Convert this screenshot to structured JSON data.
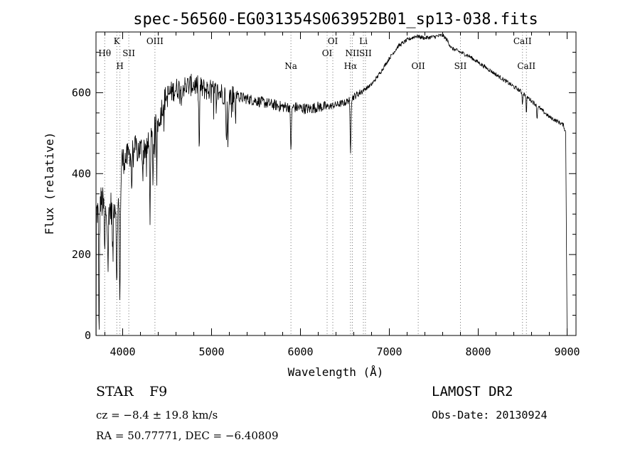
{
  "info": {
    "object_class": "STAR",
    "subclass": "F9",
    "redshift": "cz = −8.4 ± 19.8 km/s",
    "coords": "RA =  50.77771, DEC =  −6.40809",
    "survey": "LAMOST DR2",
    "obs_date": "Obs-Date: 20130924"
  },
  "chart_data": {
    "type": "line",
    "title": "spec-56560-EG031354S063952B01_sp13-038.fits",
    "xlabel": "Wavelength (Å)",
    "ylabel": "Flux (relative)",
    "xlim": [
      3700,
      9100
    ],
    "ylim": [
      0,
      750
    ],
    "xticks": [
      4000,
      5000,
      6000,
      7000,
      8000,
      9000
    ],
    "yticks": [
      0,
      200,
      400,
      600
    ],
    "grid": false,
    "line_color": "#000000",
    "continuum": [
      [
        3700,
        300
      ],
      [
        3760,
        330
      ],
      [
        3830,
        300
      ],
      [
        3900,
        330
      ],
      [
        3950,
        320
      ],
      [
        3990,
        430
      ],
      [
        4050,
        440
      ],
      [
        4120,
        460
      ],
      [
        4200,
        460
      ],
      [
        4300,
        470
      ],
      [
        4400,
        530
      ],
      [
        4480,
        590
      ],
      [
        4600,
        610
      ],
      [
        4700,
        615
      ],
      [
        4800,
        620
      ],
      [
        4900,
        610
      ],
      [
        5000,
        605
      ],
      [
        5100,
        600
      ],
      [
        5200,
        595
      ],
      [
        5300,
        590
      ],
      [
        5400,
        585
      ],
      [
        5500,
        580
      ],
      [
        5600,
        575
      ],
      [
        5700,
        570
      ],
      [
        5800,
        565
      ],
      [
        5900,
        565
      ],
      [
        6000,
        562
      ],
      [
        6100,
        560
      ],
      [
        6200,
        565
      ],
      [
        6300,
        565
      ],
      [
        6400,
        570
      ],
      [
        6500,
        575
      ],
      [
        6600,
        590
      ],
      [
        6700,
        605
      ],
      [
        6800,
        620
      ],
      [
        6900,
        650
      ],
      [
        7000,
        685
      ],
      [
        7100,
        715
      ],
      [
        7200,
        730
      ],
      [
        7300,
        740
      ],
      [
        7400,
        735
      ],
      [
        7500,
        738
      ],
      [
        7600,
        742
      ],
      [
        7650,
        730
      ],
      [
        7700,
        710
      ],
      [
        7800,
        700
      ],
      [
        7900,
        690
      ],
      [
        8000,
        675
      ],
      [
        8100,
        660
      ],
      [
        8200,
        645
      ],
      [
        8300,
        630
      ],
      [
        8400,
        615
      ],
      [
        8500,
        600
      ],
      [
        8600,
        580
      ],
      [
        8700,
        560
      ],
      [
        8800,
        540
      ],
      [
        8900,
        528
      ],
      [
        8960,
        520
      ],
      [
        8985,
        500
      ]
    ],
    "absorption": [
      {
        "wl": 3734,
        "depth": 310,
        "width": 6
      },
      {
        "wl": 3798,
        "depth": 120,
        "width": 6
      },
      {
        "wl": 3836,
        "depth": 120,
        "width": 6
      },
      {
        "wl": 3889,
        "depth": 140,
        "width": 7
      },
      {
        "wl": 3934,
        "depth": 230,
        "width": 6
      },
      {
        "wl": 3969,
        "depth": 260,
        "width": 8
      },
      {
        "wl": 4102,
        "depth": 90,
        "width": 6
      },
      {
        "wl": 4226,
        "depth": 60,
        "width": 5
      },
      {
        "wl": 4308,
        "depth": 170,
        "width": 6
      },
      {
        "wl": 4341,
        "depth": 100,
        "width": 6
      },
      {
        "wl": 4384,
        "depth": 60,
        "width": 5
      },
      {
        "wl": 4861,
        "depth": 160,
        "width": 6
      },
      {
        "wl": 5167,
        "depth": 130,
        "width": 6
      },
      {
        "wl": 5184,
        "depth": 140,
        "width": 6
      },
      {
        "wl": 5270,
        "depth": 50,
        "width": 5
      },
      {
        "wl": 5893,
        "depth": 100,
        "width": 8
      },
      {
        "wl": 6563,
        "depth": 130,
        "width": 7
      },
      {
        "wl": 8498,
        "depth": 30,
        "width": 5
      },
      {
        "wl": 8542,
        "depth": 45,
        "width": 5
      },
      {
        "wl": 8662,
        "depth": 35,
        "width": 5
      }
    ],
    "edges": {
      "start_floor": 0,
      "end_floor": 0,
      "end_drop_start": 8985,
      "end_wl": 9000
    },
    "line_markers": [
      {
        "label": "Hθ",
        "wl": 3798,
        "row": 2
      },
      {
        "label": "K",
        "wl": 3934,
        "row": 1
      },
      {
        "label": "H",
        "wl": 3969,
        "row": 3
      },
      {
        "label": "SII",
        "wl": 4069,
        "row": 2
      },
      {
        "label": "OIII",
        "wl": 4363,
        "row": 1
      },
      {
        "label": "Na",
        "wl": 5893,
        "row": 3
      },
      {
        "label": "OI",
        "wl": 6300,
        "row": 2
      },
      {
        "label": "OI",
        "wl": 6364,
        "row": 1
      },
      {
        "label": "Hα",
        "wl": 6563,
        "row": 3
      },
      {
        "label": "NII",
        "wl": 6584,
        "row": 2
      },
      {
        "label": "Li",
        "wl": 6708,
        "row": 1
      },
      {
        "label": "SII",
        "wl": 6731,
        "row": 2
      },
      {
        "label": "OII",
        "wl": 7325,
        "row": 3
      },
      {
        "label": "SII",
        "wl": 7800,
        "row": 3
      },
      {
        "label": "CaII",
        "wl": 8498,
        "row": 1
      },
      {
        "label": "CaII",
        "wl": 8542,
        "row": 3
      }
    ]
  }
}
